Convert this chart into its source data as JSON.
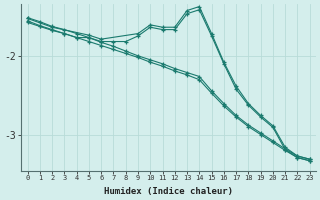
{
  "xlabel": "Humidex (Indice chaleur)",
  "ylabel": "",
  "bg_color": "#d4eeec",
  "grid_color": "#b8dbd8",
  "line_color": "#1a7a6e",
  "xlim": [
    -0.5,
    23.5
  ],
  "ylim": [
    -3.45,
    -1.35
  ],
  "yticks": [
    -3,
    -2
  ],
  "xticks": [
    0,
    1,
    2,
    3,
    4,
    5,
    6,
    7,
    8,
    9,
    10,
    11,
    12,
    13,
    14,
    15,
    16,
    17,
    18,
    19,
    20,
    21,
    22,
    23
  ],
  "series": [
    {
      "x": [
        0,
        1,
        2,
        3,
        4,
        5,
        6,
        7,
        8,
        9,
        10,
        11,
        12,
        13,
        14,
        15,
        16,
        17,
        18,
        19,
        20,
        21,
        22,
        23
      ],
      "y": [
        -1.52,
        -1.57,
        -1.63,
        -1.67,
        -1.72,
        -1.77,
        -1.83,
        -1.88,
        -1.94,
        -2.0,
        -2.05,
        -2.1,
        -2.16,
        -2.21,
        -2.26,
        -2.44,
        -2.6,
        -2.75,
        -2.87,
        -2.97,
        -3.07,
        -3.17,
        -3.26,
        -3.3
      ]
    },
    {
      "x": [
        0,
        1,
        2,
        3,
        4,
        5,
        6,
        7,
        8,
        9,
        10,
        11,
        12,
        13,
        14,
        15,
        16,
        17,
        18,
        19,
        20,
        21,
        22,
        23
      ],
      "y": [
        -1.58,
        -1.63,
        -1.68,
        -1.72,
        -1.77,
        -1.82,
        -1.87,
        -1.92,
        -1.97,
        -2.02,
        -2.08,
        -2.13,
        -2.19,
        -2.24,
        -2.3,
        -2.47,
        -2.63,
        -2.77,
        -2.89,
        -2.99,
        -3.09,
        -3.19,
        -3.28,
        -3.32
      ]
    },
    {
      "x": [
        0,
        1,
        2,
        3,
        4,
        5,
        6,
        7,
        8,
        9,
        10,
        11,
        12,
        13,
        14,
        15,
        16,
        17,
        18,
        19,
        20,
        21,
        22,
        23
      ],
      "y": [
        -1.56,
        -1.62,
        -1.67,
        -1.72,
        -1.77,
        -1.77,
        -1.82,
        -1.82,
        -1.82,
        -1.75,
        -1.64,
        -1.67,
        -1.67,
        -1.47,
        -1.42,
        -1.75,
        -2.1,
        -2.42,
        -2.62,
        -2.77,
        -2.9,
        -3.18,
        -3.28,
        -3.32
      ]
    },
    {
      "x": [
        0,
        2,
        5,
        6,
        9,
        10,
        11,
        12,
        13,
        14,
        15,
        16,
        17,
        18,
        19,
        20,
        21,
        22,
        23
      ],
      "y": [
        -1.53,
        -1.64,
        -1.74,
        -1.79,
        -1.72,
        -1.61,
        -1.64,
        -1.64,
        -1.43,
        -1.38,
        -1.72,
        -2.08,
        -2.38,
        -2.6,
        -2.75,
        -2.88,
        -3.15,
        -3.26,
        -3.3
      ]
    }
  ]
}
